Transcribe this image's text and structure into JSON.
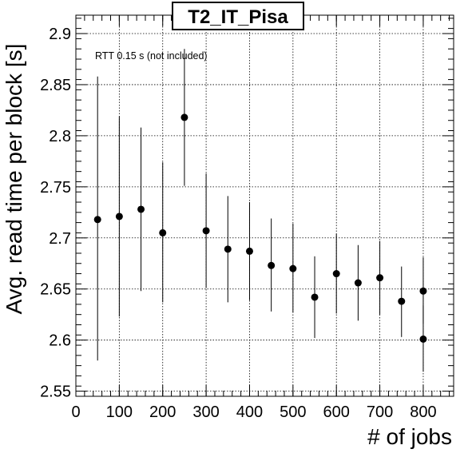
{
  "chart_data": {
    "type": "scatter",
    "title": "T2_IT_Pisa",
    "xlabel": "# of jobs",
    "ylabel": "Avg. read time per block [s]",
    "annotation": "RTT 0.15 s (not included)",
    "xlim": [
      0,
      870
    ],
    "ylim": [
      2.545,
      2.918
    ],
    "x_ticks": [
      0,
      100,
      200,
      300,
      400,
      500,
      600,
      700,
      800
    ],
    "x_tick_labels": [
      "0",
      "100",
      "200",
      "300",
      "400",
      "500",
      "600",
      "700",
      "800"
    ],
    "y_ticks": [
      2.55,
      2.6,
      2.65,
      2.7,
      2.75,
      2.8,
      2.85,
      2.9
    ],
    "y_tick_labels": [
      "2.55",
      "2.6",
      "2.65",
      "2.7",
      "2.75",
      "2.8",
      "2.85",
      "2.9"
    ],
    "grid": true,
    "series": [
      {
        "points": [
          {
            "x": 50,
            "y": 2.718,
            "ylow": 2.58,
            "yhigh": 2.858
          },
          {
            "x": 100,
            "y": 2.721,
            "ylow": 2.623,
            "yhigh": 2.819
          },
          {
            "x": 150,
            "y": 2.728,
            "ylow": 2.648,
            "yhigh": 2.808
          },
          {
            "x": 200,
            "y": 2.705,
            "ylow": 2.637,
            "yhigh": 2.774
          },
          {
            "x": 250,
            "y": 2.818,
            "ylow": 2.751,
            "yhigh": 2.885
          },
          {
            "x": 300,
            "y": 2.707,
            "ylow": 2.651,
            "yhigh": 2.763
          },
          {
            "x": 350,
            "y": 2.689,
            "ylow": 2.637,
            "yhigh": 2.741
          },
          {
            "x": 400,
            "y": 2.687,
            "ylow": 2.639,
            "yhigh": 2.735
          },
          {
            "x": 450,
            "y": 2.673,
            "ylow": 2.628,
            "yhigh": 2.719
          },
          {
            "x": 500,
            "y": 2.67,
            "ylow": 2.627,
            "yhigh": 2.714
          },
          {
            "x": 550,
            "y": 2.642,
            "ylow": 2.602,
            "yhigh": 2.682
          },
          {
            "x": 600,
            "y": 2.665,
            "ylow": 2.626,
            "yhigh": 2.704
          },
          {
            "x": 650,
            "y": 2.656,
            "ylow": 2.619,
            "yhigh": 2.693
          },
          {
            "x": 700,
            "y": 2.661,
            "ylow": 2.625,
            "yhigh": 2.697
          },
          {
            "x": 750,
            "y": 2.638,
            "ylow": 2.603,
            "yhigh": 2.672
          },
          {
            "x": 800,
            "y": 2.648,
            "ylow": 2.616,
            "yhigh": 2.681
          },
          {
            "x": 800,
            "y": 2.601,
            "ylow": 2.569,
            "yhigh": 2.634
          }
        ]
      }
    ]
  }
}
